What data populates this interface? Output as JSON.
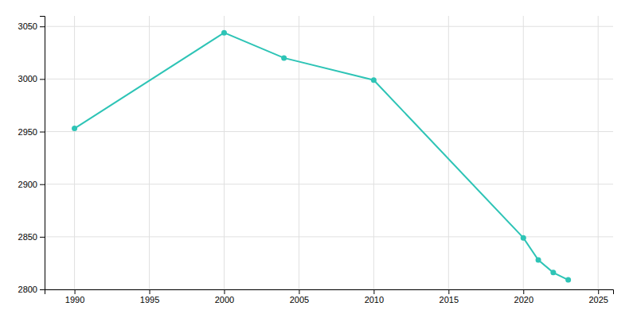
{
  "chart_data": {
    "type": "line",
    "x": [
      1990,
      2000,
      2004,
      2010,
      2020,
      2021,
      2022,
      2023
    ],
    "values": [
      2953,
      3044,
      3020,
      2999,
      2849,
      2828,
      2816,
      2809
    ],
    "color": "#2ec4b6",
    "marker": "circle",
    "xlim": [
      1988,
      2026
    ],
    "ylim": [
      2800,
      3060
    ],
    "xticks": [
      1990,
      1995,
      2000,
      2005,
      2010,
      2015,
      2020,
      2025
    ],
    "yticks": [
      2800,
      2850,
      2900,
      2950,
      3000,
      3050
    ],
    "grid": true
  }
}
